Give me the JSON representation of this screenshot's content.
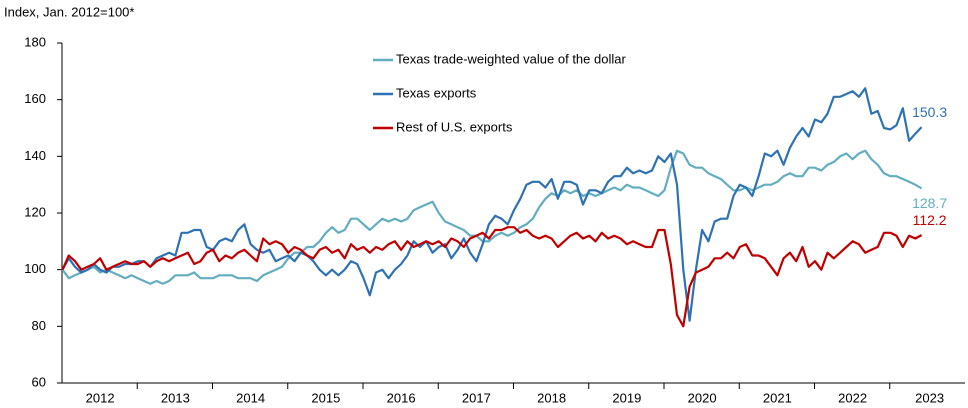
{
  "chart_data": {
    "type": "line",
    "y_axis_label": "Index, Jan. 2012=100*",
    "categories": [
      null,
      null,
      null,
      null,
      null,
      null,
      "2012",
      null,
      null,
      null,
      null,
      null,
      null,
      null,
      null,
      null,
      null,
      null,
      "2013",
      null,
      null,
      null,
      null,
      null,
      null,
      null,
      null,
      null,
      null,
      null,
      "2014",
      null,
      null,
      null,
      null,
      null,
      null,
      null,
      null,
      null,
      null,
      null,
      "2015",
      null,
      null,
      null,
      null,
      null,
      null,
      null,
      null,
      null,
      null,
      null,
      "2016",
      null,
      null,
      null,
      null,
      null,
      null,
      null,
      null,
      null,
      null,
      null,
      "2017",
      null,
      null,
      null,
      null,
      null,
      null,
      null,
      null,
      null,
      null,
      null,
      "2018",
      null,
      null,
      null,
      null,
      null,
      null,
      null,
      null,
      null,
      null,
      null,
      "2019",
      null,
      null,
      null,
      null,
      null,
      null,
      null,
      null,
      null,
      null,
      null,
      "2020",
      null,
      null,
      null,
      null,
      null,
      null,
      null,
      null,
      null,
      null,
      null,
      "2021",
      null,
      null,
      null,
      null,
      null,
      null,
      null,
      null,
      null,
      null,
      null,
      "2022",
      null,
      null,
      null,
      null,
      null,
      null,
      null,
      null,
      null,
      null,
      "2023"
    ],
    "series": [
      {
        "name": "Texas trade-weighted value of the dollar",
        "color": "#62aebf",
        "values": [
          100,
          97,
          98,
          99,
          100,
          101,
          99,
          100,
          99,
          98,
          97,
          98,
          97,
          96,
          95,
          96,
          95,
          96,
          98,
          98,
          98,
          99,
          97,
          97,
          97,
          98,
          98,
          98,
          97,
          97,
          97,
          96,
          98,
          99,
          100,
          101,
          104,
          106,
          106,
          108,
          108,
          110,
          113,
          115,
          113,
          114,
          118,
          118,
          116,
          114,
          116,
          118,
          117,
          118,
          117,
          118,
          121,
          122,
          123,
          124,
          120,
          117,
          116,
          115,
          114,
          112,
          112,
          110,
          110,
          112,
          113,
          112,
          113,
          115,
          116,
          118,
          122,
          125,
          127,
          126,
          128,
          127,
          128,
          126,
          127,
          126,
          127,
          128,
          129,
          128,
          130,
          129,
          129,
          128,
          127,
          126,
          128,
          136,
          142,
          141,
          137,
          136,
          136,
          134,
          133,
          132,
          130,
          128,
          128,
          129,
          128,
          129,
          130,
          130,
          131,
          133,
          134,
          133,
          133,
          136,
          136,
          135,
          137,
          138,
          140,
          141,
          139,
          141,
          142,
          139,
          137,
          134,
          133,
          133,
          132,
          131,
          130,
          128.7
        ]
      },
      {
        "name": "Texas exports",
        "color": "#2e72b3",
        "values": [
          100,
          104,
          101,
          99,
          100,
          102,
          100,
          99,
          101,
          101,
          102,
          102,
          103,
          103,
          101,
          104,
          105,
          106,
          105,
          113,
          113,
          114,
          114,
          108,
          107,
          110,
          111,
          110,
          114,
          116,
          109,
          107,
          106,
          107,
          103,
          104,
          105,
          103,
          106,
          105,
          103,
          100,
          98,
          100,
          98,
          100,
          103,
          102,
          97,
          91,
          99,
          100,
          97,
          100,
          102,
          105,
          110,
          108,
          110,
          106,
          108,
          109,
          104,
          107,
          111,
          106,
          103,
          109,
          116,
          119,
          118,
          116,
          121,
          125,
          130,
          131,
          131,
          129,
          132,
          125,
          131,
          131,
          130,
          123,
          128,
          128,
          127,
          131,
          133,
          133,
          136,
          134,
          135,
          134,
          135,
          140,
          138,
          141,
          130,
          100,
          82,
          100,
          114,
          110,
          117,
          118,
          118,
          126,
          130,
          129,
          126,
          133,
          141,
          140,
          142,
          137,
          143,
          147,
          150,
          147,
          153,
          152,
          155,
          161,
          161,
          162,
          163,
          161,
          164,
          155,
          156,
          150,
          149.5,
          151,
          157,
          145.5,
          148,
          150.3
        ]
      },
      {
        "name": "Rest of U.S. exports",
        "color": "#c00000",
        "values": [
          100,
          105,
          103,
          100,
          101,
          102,
          104,
          100,
          101,
          102,
          103,
          102,
          102,
          103,
          101,
          103,
          104,
          103,
          104,
          105,
          106,
          102,
          103,
          106,
          107,
          103,
          105,
          104,
          106,
          107,
          105,
          103,
          111,
          109,
          110,
          109,
          106,
          108,
          107,
          105,
          104,
          107,
          108,
          106,
          107,
          104,
          109,
          107,
          108,
          106,
          108,
          107,
          109,
          110,
          107,
          110,
          108,
          109,
          110,
          109,
          110,
          108,
          111,
          110,
          108,
          111,
          112,
          113,
          111,
          114,
          114,
          115,
          115,
          113,
          114,
          112,
          111,
          112,
          111,
          108,
          110,
          112,
          113,
          111,
          112,
          110,
          113,
          111,
          112,
          111,
          109,
          110,
          109,
          108,
          108,
          114,
          114,
          102,
          84,
          80,
          94,
          99,
          100,
          101,
          104,
          104,
          106,
          104,
          108,
          109,
          105,
          105,
          104,
          101,
          98,
          104,
          106,
          103,
          108,
          101,
          103,
          100,
          106,
          104,
          106,
          108,
          110,
          109,
          106,
          107,
          108,
          113,
          113,
          112,
          108,
          112,
          111,
          112.2
        ]
      }
    ],
    "ylim": [
      60,
      180
    ],
    "yticks": [
      60,
      80,
      100,
      120,
      140,
      160,
      180
    ]
  }
}
